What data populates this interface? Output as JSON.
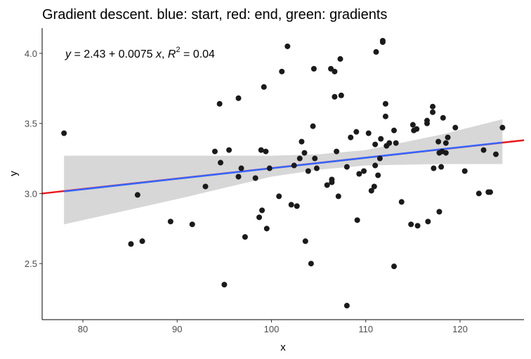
{
  "chart_data": {
    "type": "scatter",
    "title": "Gradient descent. blue: start, red: end, green: gradients",
    "xlabel": "x",
    "ylabel": "y",
    "annotation": {
      "lhs": "y",
      "rhs": " = 2.43 + 0.0075 ",
      "var": "x",
      "sep": ", ",
      "r": "R",
      "sup": "2",
      "val": " = 0.04"
    },
    "xlim": [
      75.68,
      126.78
    ],
    "ylim": [
      2.1,
      4.18
    ],
    "xticks": [
      80,
      90,
      100,
      110,
      120
    ],
    "yticks": [
      2.5,
      {
        "value": 3,
        "label": "3.0"
      },
      3.5,
      {
        "value": 4,
        "label": "4.0"
      }
    ],
    "grid": false,
    "band": {
      "color": "#d3d3d3",
      "x": [
        78,
        90,
        100,
        105,
        110,
        118,
        124.5
      ],
      "upper": [
        3.27,
        3.27,
        3.27,
        3.28,
        3.31,
        3.42,
        3.53
      ],
      "lower": [
        2.78,
        2.96,
        3.12,
        3.17,
        3.2,
        3.21,
        3.21
      ]
    },
    "end_line": {
      "color": "#e8191c",
      "x": [
        75.68,
        126.78
      ],
      "y": [
        3.0,
        3.38
      ]
    },
    "fit_line": {
      "color": "#3366ff",
      "x": [
        78,
        124.5
      ],
      "y": [
        3.015,
        3.364
      ]
    },
    "points": {
      "color": "#1a1a1a",
      "x": [
        78,
        85.1,
        85.8,
        86.3,
        89.3,
        91.6,
        93,
        94,
        94.6,
        94.5,
        95,
        95.5,
        96.5,
        96.5,
        96.8,
        97.2,
        98.3,
        98.7,
        98.9,
        99,
        99.2,
        99.4,
        99.5,
        99.8,
        100.8,
        101.1,
        101.7,
        102.1,
        102.4,
        102.7,
        103,
        103.2,
        103.6,
        103.5,
        103.9,
        104.2,
        104.4,
        104.5,
        104.6,
        104.8,
        105.9,
        106.3,
        106.4,
        106.4,
        106.7,
        106.7,
        106.9,
        107.1,
        107.3,
        107.4,
        108,
        108,
        108.4,
        109,
        109.1,
        109.3,
        109.8,
        110.3,
        110.6,
        110.9,
        111,
        111,
        111.1,
        111.3,
        111.5,
        111.6,
        111.8,
        111.8,
        112.1,
        112.1,
        112.2,
        112.5,
        113,
        113,
        113.2,
        113.8,
        114.8,
        115,
        115.1,
        115.4,
        115.5,
        116.5,
        116.5,
        116.6,
        117.1,
        117.1,
        117.2,
        117.7,
        117.8,
        117.8,
        118,
        118.1,
        118.2,
        118.5,
        118.5,
        118.7,
        119.5,
        120.5,
        122,
        122.5,
        123,
        123.2,
        123.8,
        124.5
      ],
      "y": [
        3.43,
        2.64,
        2.99,
        2.66,
        2.8,
        2.78,
        3.05,
        3.3,
        3.22,
        3.64,
        2.35,
        3.31,
        3.68,
        3.12,
        3.18,
        2.69,
        3.11,
        2.83,
        3.31,
        2.88,
        3.76,
        3.3,
        2.75,
        3.18,
        2.98,
        3.87,
        4.05,
        2.92,
        3.2,
        2.91,
        3.25,
        3.37,
        2.66,
        3.29,
        3.16,
        2.5,
        3.48,
        3.89,
        3.25,
        3.18,
        3.06,
        3.89,
        3.1,
        3.08,
        3.69,
        3.87,
        3.3,
        2.98,
        3.96,
        3.7,
        2.2,
        3.19,
        3.4,
        3.44,
        2.81,
        3.14,
        3.16,
        3.43,
        3.02,
        3.05,
        3.2,
        3.35,
        4.01,
        3.13,
        3.25,
        3.39,
        4.08,
        4.09,
        3.64,
        3.55,
        3.34,
        3.36,
        3.45,
        2.48,
        3.36,
        2.94,
        2.78,
        3.49,
        3.45,
        3.46,
        2.77,
        3.52,
        3.5,
        2.8,
        3.58,
        3.62,
        3.18,
        3.37,
        3.29,
        2.87,
        3.19,
        3.3,
        3.54,
        3.36,
        3.29,
        3.4,
        3.47,
        3.16,
        3.0,
        3.31,
        3.01,
        3.01,
        3.28,
        3.47
      ]
    }
  }
}
